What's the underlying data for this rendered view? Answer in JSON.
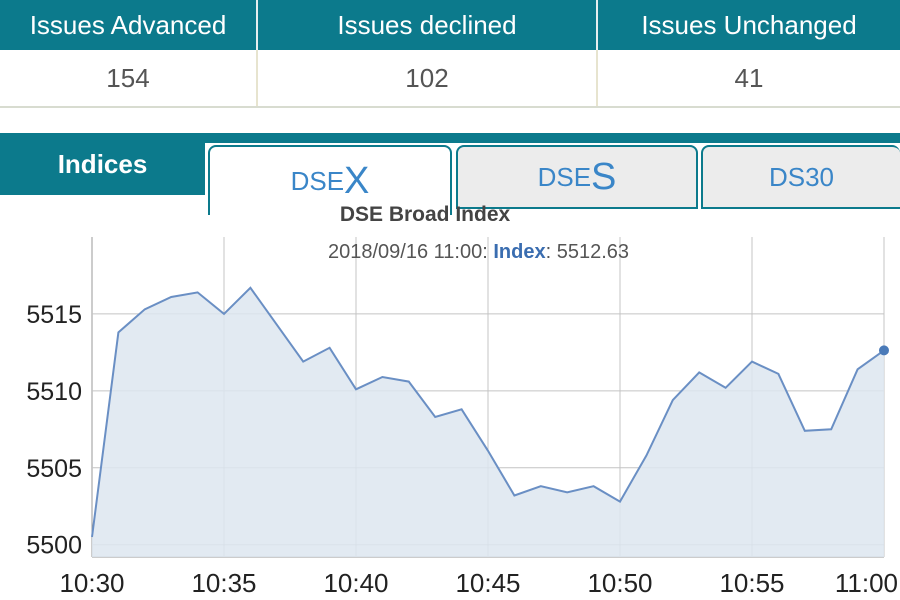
{
  "issues": {
    "headers": [
      "Issues Advanced",
      "Issues declined",
      "Issues Unchanged"
    ],
    "values": [
      "154",
      "102",
      "41"
    ]
  },
  "tabs": {
    "indices_label": "Indices",
    "dsex": {
      "prefix": "DSE",
      "letter": "X"
    },
    "dses": {
      "prefix": "DSE",
      "letter": "S"
    },
    "ds30": "DS30"
  },
  "chart_data": {
    "type": "area",
    "title": "DSE Broad Index",
    "tooltip": {
      "timestamp": "2018/09/16 11:00",
      "series_label": "Index",
      "value": "5512.63"
    },
    "xlabel": "",
    "ylabel": "",
    "x_ticks": [
      "10:30",
      "10:35",
      "10:40",
      "10:45",
      "10:50",
      "10:55",
      "11:00"
    ],
    "y_ticks": [
      5500,
      5505,
      5510,
      5515
    ],
    "xlim": [
      0,
      30
    ],
    "ylim": [
      5499.2,
      5520
    ],
    "grid": true,
    "x": [
      0,
      1,
      2,
      3,
      4,
      5,
      6,
      7,
      8,
      9,
      10,
      11,
      12,
      13,
      14,
      15,
      16,
      17,
      18,
      19,
      20,
      21,
      22,
      23,
      24,
      25,
      26,
      27,
      28,
      29,
      30
    ],
    "values": [
      5500.5,
      5513.8,
      5515.3,
      5516.1,
      5516.4,
      5515.0,
      5516.7,
      5514.3,
      5511.9,
      5512.8,
      5510.1,
      5510.9,
      5510.6,
      5508.3,
      5508.8,
      5506.1,
      5503.2,
      5503.8,
      5503.4,
      5503.8,
      5502.8,
      5505.8,
      5509.4,
      5511.2,
      5510.2,
      5511.9,
      5511.1,
      5507.4,
      5507.5,
      5511.4,
      5512.63
    ],
    "colors": {
      "line": "#6a8fc4",
      "fill": "#dde6f0",
      "grid": "#c4c4c4",
      "marker": "#4a7ab8"
    }
  }
}
